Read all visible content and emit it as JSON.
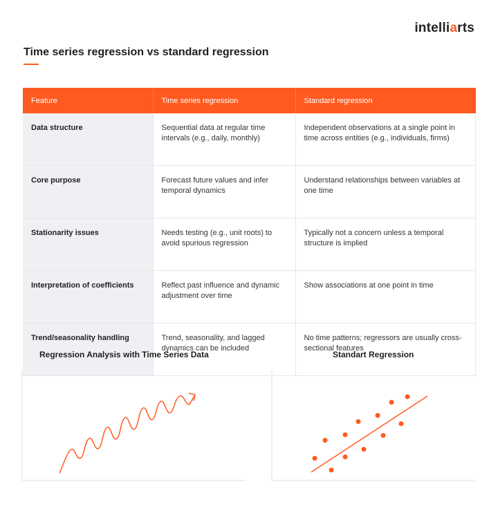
{
  "brand": {
    "logo_left": "intelli",
    "logo_mark": "a",
    "logo_right": "rts",
    "accent": "#ff5a1f"
  },
  "title": "Time series regression vs standard regression",
  "table": {
    "headers": [
      "Feature",
      "Time series regression",
      "Standard regression"
    ],
    "rows": [
      {
        "feature": "Data structure",
        "ts": "Sequential data at regular time intervals (e.g., daily, monthly)",
        "std": "Independent observations at a single point in time across entities (e.g., individuals, firms)"
      },
      {
        "feature": "Core purpose",
        "ts": "Forecast future values and infer temporal dynamics",
        "std": "Understand relationships between variables at one time"
      },
      {
        "feature": "Stationarity issues",
        "ts": "Needs testing (e.g., unit roots) to avoid spurious regression",
        "std": "Typically not a concern unless a temporal structure is implied"
      },
      {
        "feature": "Interpretation of coefficients",
        "ts": "Reflect past influence and dynamic adjustment over time",
        "std": "Show associations at one point in time"
      },
      {
        "feature": "Trend/seasonality handling",
        "ts": "Trend, seasonality, and lagged dynamics can be included",
        "std": "No time patterns; regressors are usually cross-sectional features"
      }
    ]
  },
  "charts": {
    "left_title": "Regression Analysis with Time Series Data",
    "right_title": "Standart Regression"
  }
}
